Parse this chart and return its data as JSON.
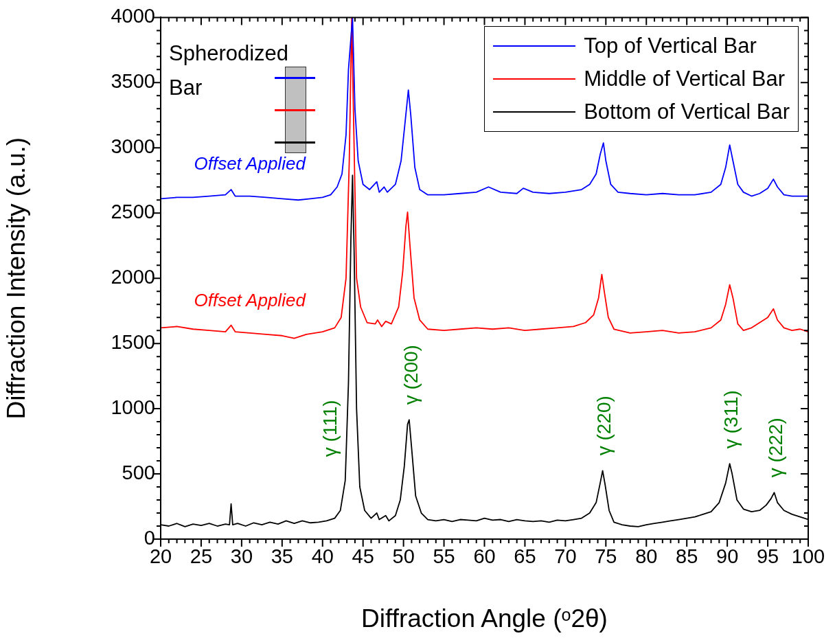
{
  "chart_data": {
    "type": "line",
    "xlabel": "Diffraction Angle (ᵒ2θ)",
    "ylabel": "Diffraction Intensity (a.u.)",
    "xlim": [
      20,
      100
    ],
    "ylim": [
      0,
      4000
    ],
    "xticks": [
      20,
      {
        "value": 21,
        "label": null
      },
      {
        "value": 22,
        "label": null
      },
      {
        "value": 23,
        "label": null
      },
      {
        "value": 24,
        "label": null
      },
      25,
      {
        "value": 26,
        "label": null
      },
      {
        "value": 27,
        "label": null
      },
      {
        "value": 28,
        "label": null
      },
      {
        "value": 29,
        "label": null
      },
      30,
      {
        "value": 31,
        "label": null
      },
      {
        "value": 32,
        "label": null
      },
      {
        "value": 33,
        "label": null
      },
      {
        "value": 34,
        "label": null
      },
      35,
      {
        "value": 36,
        "label": null
      },
      {
        "value": 37,
        "label": null
      },
      {
        "value": 38,
        "label": null
      },
      {
        "value": 39,
        "label": null
      },
      40,
      {
        "value": 41,
        "label": null
      },
      {
        "value": 42,
        "label": null
      },
      {
        "value": 43,
        "label": null
      },
      {
        "value": 44,
        "label": null
      },
      45,
      {
        "value": 46,
        "label": null
      },
      {
        "value": 47,
        "label": null
      },
      {
        "value": 48,
        "label": null
      },
      {
        "value": 49,
        "label": null
      },
      50,
      {
        "value": 51,
        "label": null
      },
      {
        "value": 52,
        "label": null
      },
      {
        "value": 53,
        "label": null
      },
      {
        "value": 54,
        "label": null
      },
      55,
      {
        "value": 56,
        "label": null
      },
      {
        "value": 57,
        "label": null
      },
      {
        "value": 58,
        "label": null
      },
      {
        "value": 59,
        "label": null
      },
      60,
      {
        "value": 61,
        "label": null
      },
      {
        "value": 62,
        "label": null
      },
      {
        "value": 63,
        "label": null
      },
      {
        "value": 64,
        "label": null
      },
      65,
      {
        "value": 66,
        "label": null
      },
      {
        "value": 67,
        "label": null
      },
      {
        "value": 68,
        "label": null
      },
      {
        "value": 69,
        "label": null
      },
      70,
      {
        "value": 71,
        "label": null
      },
      {
        "value": 72,
        "label": null
      },
      {
        "value": 73,
        "label": null
      },
      {
        "value": 74,
        "label": null
      },
      75,
      {
        "value": 76,
        "label": null
      },
      {
        "value": 77,
        "label": null
      },
      {
        "value": 78,
        "label": null
      },
      {
        "value": 79,
        "label": null
      },
      80,
      {
        "value": 81,
        "label": null
      },
      {
        "value": 82,
        "label": null
      },
      {
        "value": 83,
        "label": null
      },
      {
        "value": 84,
        "label": null
      },
      85,
      {
        "value": 86,
        "label": null
      },
      {
        "value": 87,
        "label": null
      },
      {
        "value": 88,
        "label": null
      },
      {
        "value": 89,
        "label": null
      },
      90,
      {
        "value": 91,
        "label": null
      },
      {
        "value": 92,
        "label": null
      },
      {
        "value": 93,
        "label": null
      },
      {
        "value": 94,
        "label": null
      },
      95,
      {
        "value": 96,
        "label": null
      },
      {
        "value": 97,
        "label": null
      },
      {
        "value": 98,
        "label": null
      },
      {
        "value": 99,
        "label": null
      },
      100
    ],
    "yticks": [
      0,
      {
        "value": 100,
        "label": null
      },
      {
        "value": 200,
        "label": null
      },
      {
        "value": 300,
        "label": null
      },
      {
        "value": 400,
        "label": null
      },
      500,
      {
        "value": 600,
        "label": null
      },
      {
        "value": 700,
        "label": null
      },
      {
        "value": 800,
        "label": null
      },
      {
        "value": 900,
        "label": null
      },
      1000,
      {
        "value": 1100,
        "label": null
      },
      {
        "value": 1200,
        "label": null
      },
      {
        "value": 1300,
        "label": null
      },
      {
        "value": 1400,
        "label": null
      },
      1500,
      {
        "value": 1600,
        "label": null
      },
      {
        "value": 1700,
        "label": null
      },
      {
        "value": 1800,
        "label": null
      },
      {
        "value": 1900,
        "label": null
      },
      2000,
      {
        "value": 2100,
        "label": null
      },
      {
        "value": 2200,
        "label": null
      },
      {
        "value": 2300,
        "label": null
      },
      {
        "value": 2400,
        "label": null
      },
      2500,
      {
        "value": 2600,
        "label": null
      },
      {
        "value": 2700,
        "label": null
      },
      {
        "value": 2800,
        "label": null
      },
      {
        "value": 2900,
        "label": null
      },
      3000,
      {
        "value": 3100,
        "label": null
      },
      {
        "value": 3200,
        "label": null
      },
      {
        "value": 3300,
        "label": null
      },
      {
        "value": 3400,
        "label": null
      },
      3500,
      {
        "value": 3600,
        "label": null
      },
      {
        "value": 3700,
        "label": null
      },
      {
        "value": 3800,
        "label": null
      },
      {
        "value": 3900,
        "label": null
      },
      4000
    ],
    "grid": false,
    "legend": "top right",
    "marker": "none",
    "line_style": "solid",
    "series": [
      {
        "name": "Top of Vertical Bar",
        "color": "#0000ff",
        "x": [
          20,
          22,
          24,
          26,
          28,
          28.7,
          29.2,
          31,
          33,
          35,
          37,
          38.5,
          40,
          41,
          41.8,
          42.4,
          42.9,
          43.2,
          43.7,
          44.0,
          44.4,
          45,
          45.8,
          46.7,
          47,
          47.6,
          48,
          49,
          49.7,
          50.2,
          50.6,
          50.9,
          51.4,
          52,
          53,
          55,
          57,
          59,
          60.5,
          62,
          64,
          64.8,
          66,
          68,
          70,
          72,
          73,
          73.8,
          74.3,
          74.7,
          75,
          75.6,
          76.5,
          78,
          80,
          82,
          84,
          86,
          88,
          89.2,
          89.8,
          90.3,
          90.7,
          91.3,
          92,
          93,
          94,
          95,
          95.7,
          96.2,
          97,
          98,
          100
        ],
        "values": [
          2610,
          2620,
          2620,
          2630,
          2640,
          2680,
          2630,
          2630,
          2620,
          2610,
          2600,
          2610,
          2620,
          2640,
          2700,
          2800,
          3100,
          3600,
          4000,
          3300,
          2900,
          2720,
          2680,
          2740,
          2660,
          2700,
          2660,
          2720,
          2900,
          3200,
          3443,
          3250,
          2850,
          2680,
          2640,
          2640,
          2650,
          2660,
          2700,
          2660,
          2650,
          2690,
          2660,
          2650,
          2660,
          2680,
          2720,
          2800,
          2950,
          3038,
          2900,
          2720,
          2660,
          2650,
          2640,
          2650,
          2640,
          2640,
          2660,
          2720,
          2850,
          3022,
          2900,
          2720,
          2660,
          2630,
          2650,
          2690,
          2760,
          2700,
          2640,
          2630,
          2630
        ]
      },
      {
        "name": "Middle of Vertical Bar",
        "color": "#ff0000",
        "x": [
          20,
          22,
          24,
          26,
          28,
          28.7,
          29.2,
          31,
          33,
          35,
          36.5,
          38,
          40,
          41.5,
          42.3,
          42.9,
          43.3,
          43.6,
          43.9,
          44.2,
          44.7,
          45.5,
          46.5,
          46.8,
          47.3,
          47.8,
          48.5,
          49.4,
          49.9,
          50.3,
          50.5,
          50.8,
          51.3,
          52,
          53,
          55,
          57,
          59,
          61,
          63,
          65,
          67,
          69,
          71,
          72.5,
          73.5,
          74.1,
          74.5,
          74.8,
          75.3,
          76,
          78,
          80,
          82,
          84,
          86,
          88,
          89.2,
          89.8,
          90.3,
          90.7,
          91.3,
          92,
          93,
          94,
          95,
          95.7,
          96.2,
          97,
          98,
          99,
          100
        ],
        "values": [
          1620,
          1630,
          1610,
          1600,
          1590,
          1640,
          1590,
          1580,
          1570,
          1560,
          1540,
          1570,
          1590,
          1620,
          1700,
          2000,
          2900,
          4000,
          3000,
          2000,
          1780,
          1660,
          1650,
          1680,
          1630,
          1670,
          1650,
          1780,
          2050,
          2400,
          2507,
          2250,
          1850,
          1680,
          1610,
          1600,
          1610,
          1620,
          1610,
          1620,
          1600,
          1610,
          1620,
          1630,
          1660,
          1720,
          1850,
          2029,
          1900,
          1700,
          1610,
          1580,
          1590,
          1600,
          1580,
          1590,
          1620,
          1680,
          1800,
          1950,
          1850,
          1650,
          1600,
          1620,
          1660,
          1700,
          1766,
          1680,
          1620,
          1600,
          1610,
          1590
        ]
      },
      {
        "name": "Bottom of Vertical Bar",
        "color": "#000000",
        "x": [
          20,
          21,
          22,
          23,
          24,
          25,
          26,
          27,
          28,
          28.5,
          28.7,
          28.9,
          29.5,
          30.5,
          31.5,
          32.5,
          33.5,
          34.5,
          35.5,
          36.5,
          37.5,
          38.5,
          39.5,
          40.5,
          41.5,
          42.2,
          42.8,
          42.9,
          43.2,
          43.5,
          43.7,
          43.9,
          44.2,
          44.6,
          45.2,
          46,
          46.7,
          47,
          47.8,
          48.2,
          49,
          49.6,
          50.1,
          50.5,
          50.7,
          51,
          51.5,
          52.2,
          53,
          54,
          55,
          56,
          57,
          58,
          59,
          60,
          61,
          62,
          63,
          64,
          65,
          66,
          67,
          68,
          69,
          70,
          71,
          72,
          73,
          73.8,
          74.3,
          74.6,
          74.9,
          75.4,
          76,
          77,
          78,
          79,
          80,
          81,
          82,
          83,
          84,
          85,
          86,
          87,
          88,
          89,
          89.8,
          90.3,
          90.6,
          91.2,
          92,
          93,
          94,
          94.8,
          95.4,
          95.8,
          96.2,
          97,
          98,
          99,
          100
        ],
        "values": [
          110,
          100,
          120,
          95,
          115,
          105,
          120,
          100,
          115,
          110,
          270,
          110,
          120,
          100,
          125,
          110,
          130,
          115,
          140,
          120,
          140,
          125,
          130,
          140,
          160,
          220,
          450,
          630,
          1200,
          2300,
          2790,
          2200,
          1000,
          400,
          220,
          160,
          200,
          150,
          180,
          140,
          180,
          300,
          560,
          880,
          915,
          700,
          330,
          200,
          150,
          140,
          150,
          135,
          150,
          145,
          140,
          160,
          145,
          150,
          135,
          150,
          140,
          135,
          140,
          130,
          145,
          140,
          150,
          160,
          200,
          280,
          430,
          525,
          420,
          220,
          130,
          110,
          100,
          95,
          110,
          120,
          130,
          140,
          150,
          160,
          170,
          190,
          210,
          280,
          430,
          578,
          500,
          300,
          230,
          210,
          220,
          260,
          310,
          357,
          280,
          220,
          190,
          170,
          150
        ]
      }
    ],
    "annotations": [
      "Spherodized Bar",
      {
        "text": "Offset Applied",
        "x": 31,
        "y": 2630
      },
      {
        "text": "Offset Applied",
        "x": 31,
        "y": 1580
      },
      {
        "text": "γ (111)",
        "x": 42.9,
        "y": 630
      },
      {
        "text": "γ (200)",
        "x": 50.7,
        "y": 915
      },
      {
        "text": "γ (220)",
        "x": 74.6,
        "y": 525
      },
      {
        "text": "γ (311)",
        "x": 90.3,
        "y": 578
      },
      {
        "text": "γ (222)",
        "x": 95.8,
        "y": 357
      }
    ]
  }
}
